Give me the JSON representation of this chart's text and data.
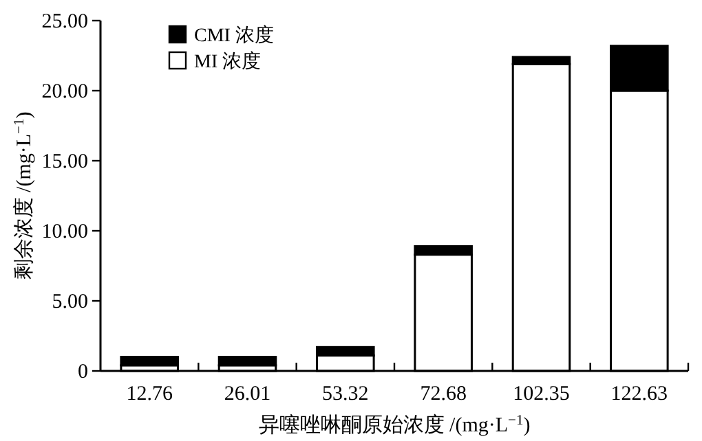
{
  "chart_data": {
    "type": "bar",
    "stacked": true,
    "xlabel": "异噻唑啉酮原始浓度 /(mg·L$^{−1}$)",
    "ylabel": "剩余浓度 /(mg·L$^{−1}$)",
    "categories": [
      "12.76",
      "26.01",
      "53.32",
      "72.68",
      "102.35",
      "122.63"
    ],
    "series": [
      {
        "name": "MI 浓度",
        "color": "#ffffff",
        "values": [
          0.4,
          0.4,
          1.1,
          8.3,
          21.9,
          20.0
        ]
      },
      {
        "name": "CMI 浓度",
        "color": "#000000",
        "values": [
          0.6,
          0.6,
          0.6,
          0.6,
          0.5,
          3.2
        ]
      }
    ],
    "ylim": [
      0,
      25
    ],
    "yticks": [
      {
        "value": 0,
        "label": "0"
      },
      {
        "value": 5,
        "label": "5.00"
      },
      {
        "value": 10,
        "label": "10.00"
      },
      {
        "value": 15,
        "label": "15.00"
      },
      {
        "value": 20,
        "label": "20.00"
      },
      {
        "value": 25,
        "label": "25.00"
      }
    ],
    "grid": false,
    "legend": "top left"
  }
}
